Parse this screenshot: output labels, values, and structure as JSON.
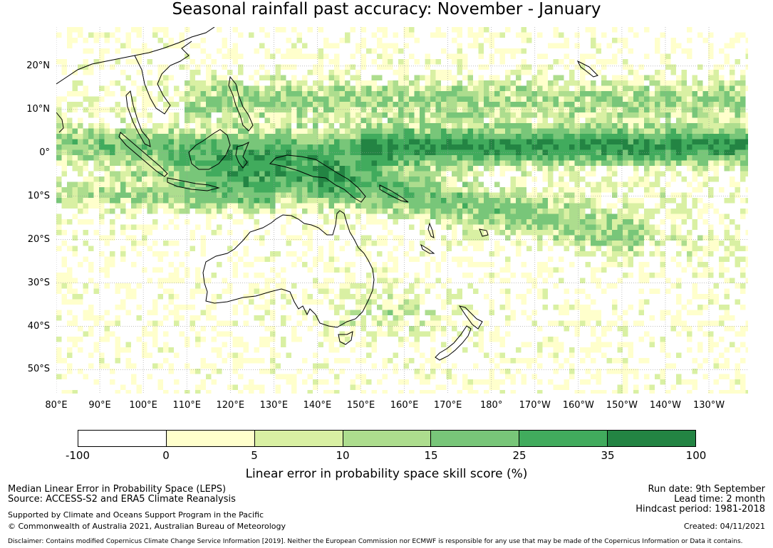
{
  "title": "Seasonal rainfall past accuracy: November - January",
  "map": {
    "lat_labels": [
      "20°N",
      "10°N",
      "0°",
      "10°S",
      "20°S",
      "30°S",
      "40°S",
      "50°S"
    ],
    "lon_labels": [
      "80°E",
      "90°E",
      "100°E",
      "110°E",
      "120°E",
      "130°E",
      "140°E",
      "150°E",
      "160°E",
      "170°E",
      "180°",
      "170°W",
      "160°W",
      "150°W",
      "140°W",
      "130°W"
    ],
    "lon_range": [
      80,
      239
    ],
    "lat_range": [
      -55.5,
      29
    ]
  },
  "colorbar": {
    "ticks": [
      "-100",
      "0",
      "5",
      "10",
      "15",
      "25",
      "35",
      "100"
    ],
    "colors": [
      "#ffffff",
      "#ffffcc",
      "#d9f0a3",
      "#addd8e",
      "#78c679",
      "#41ab5d",
      "#238443"
    ],
    "label": "Linear error in probability space skill score (%)"
  },
  "footer": {
    "line1": "Median Linear Error in Probability Space (LEPS)",
    "line2": "Source: ACCESS-S2 and ERA5 Climate Reanalysis",
    "line3": "Supported by Climate and Oceans Support Program in the Pacific",
    "line4": "© Commonwealth of Australia 2021, Australian Bureau of Meteorology",
    "run_date": "Run date: 9th September",
    "lead_time": "Lead time: 2 month",
    "hindcast": "Hindcast period: 1981-2018",
    "created": "Created: 04/11/2021",
    "disclaimer": "Disclaimer: Contains modified Copernicus Climate Change Service Information [2019]. Neither the European Commission nor ECMWF is responsible for any use that may be made of the Copernicus Information or Data it contains."
  }
}
